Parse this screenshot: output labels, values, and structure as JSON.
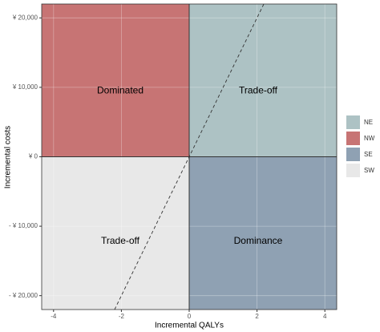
{
  "chart_data": {
    "type": "ce-plane",
    "x_label": "Incremental QALYs",
    "y_label": "Incremental costs",
    "xlim": [
      -4.35,
      4.35
    ],
    "xticks": [
      -4,
      -2,
      0,
      2,
      4
    ],
    "ylim": [
      -22000,
      22000
    ],
    "yticks": [
      {
        "value": -20000,
        "label": "- ¥ 20,000"
      },
      {
        "value": -10000,
        "label": "- ¥ 10,000"
      },
      {
        "value": 0,
        "label": "¥ 0"
      },
      {
        "value": 10000,
        "label": "¥ 10,000"
      },
      {
        "value": 20000,
        "label": "¥ 20,000"
      }
    ],
    "grid": true,
    "threshold": 10000,
    "quadrants": [
      {
        "name": "NE",
        "color": "#adc2c4",
        "label": "Trade-off"
      },
      {
        "name": "NW",
        "color": "#c77474",
        "label": "Dominated"
      },
      {
        "name": "SE",
        "color": "#8fa1b3",
        "label": "Dominance"
      },
      {
        "name": "SW",
        "color": "#e8e8e8",
        "label": "Trade-off"
      }
    ],
    "legend_position": "right"
  }
}
